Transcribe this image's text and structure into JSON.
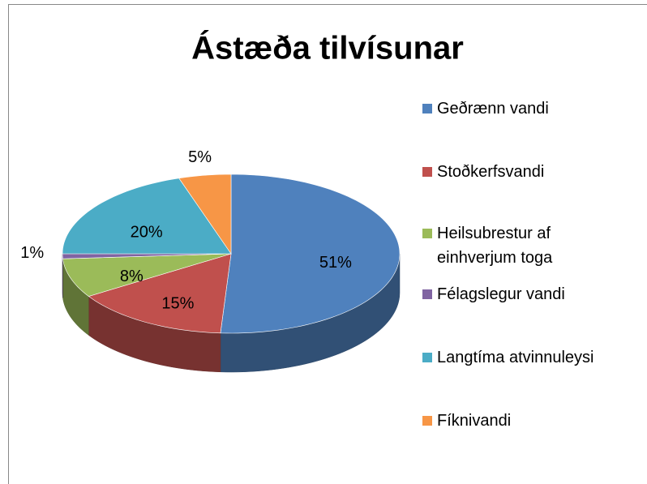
{
  "chart_data": {
    "type": "pie",
    "title": "Ástæða tilvísunar",
    "categories": [
      "Geðrænn vandi",
      "Stoðkerfsvandi",
      "Heilsubrestur af einhverjum toga",
      "Félagslegur vandi",
      "Langtíma atvinnuleysi",
      "Fíknivandi"
    ],
    "values": [
      51,
      15,
      8,
      1,
      20,
      5
    ],
    "value_labels": [
      "51%",
      "15%",
      "8%",
      "1%",
      "20%",
      "5%"
    ],
    "colors": [
      "#4f81bd",
      "#c0504d",
      "#9bbb59",
      "#8064a2",
      "#4bacc6",
      "#f79646"
    ],
    "legend": "right"
  }
}
